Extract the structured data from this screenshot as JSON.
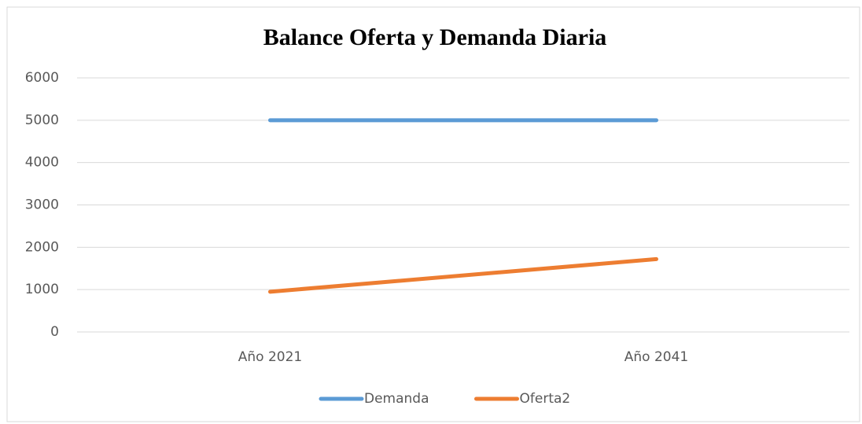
{
  "chart_data": {
    "type": "line",
    "title": "Balance Oferta y Demanda Diaria",
    "categories": [
      "Año 2021",
      "Año 2041"
    ],
    "series": [
      {
        "name": "Demanda",
        "color": "#5b9bd5",
        "values": [
          5000,
          5000
        ]
      },
      {
        "name": "Oferta2",
        "color": "#ed7d31",
        "values": [
          950,
          1720
        ]
      }
    ],
    "ylim": [
      0,
      6000
    ],
    "yticks": [
      0,
      1000,
      2000,
      3000,
      4000,
      5000,
      6000
    ],
    "grid": true,
    "legend": "bottom"
  }
}
